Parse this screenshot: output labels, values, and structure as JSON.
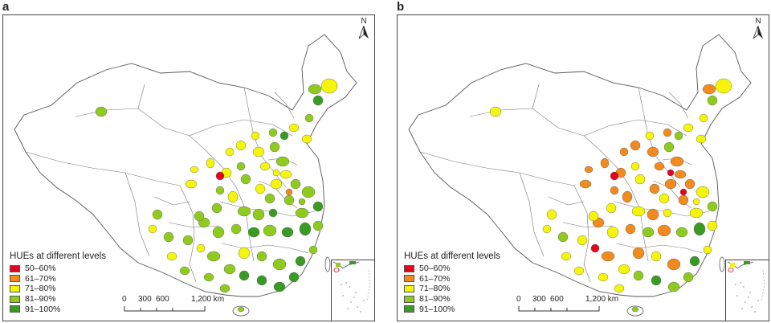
{
  "panels": [
    {
      "label": "a",
      "legend_title": "HUEs at different levels",
      "legend": [
        {
          "label": "50–60%",
          "color": "#e8001c"
        },
        {
          "label": "61–70%",
          "color": "#f28a1e"
        },
        {
          "label": "71–80%",
          "color": "#f5f50a"
        },
        {
          "label": "81–90%",
          "color": "#8fcb1e"
        },
        {
          "label": "91–100%",
          "color": "#3a9b24"
        }
      ],
      "scale_ticks": [
        "0",
        "300",
        "600",
        "1,200 km"
      ],
      "north": "N"
    },
    {
      "label": "b",
      "legend_title": "HUEs at different levels",
      "legend": [
        {
          "label": "50–60%",
          "color": "#e8001c"
        },
        {
          "label": "61–70%",
          "color": "#f28a1e"
        },
        {
          "label": "71–80%",
          "color": "#f5f50a"
        },
        {
          "label": "81–90%",
          "color": "#8fcb1e"
        },
        {
          "label": "91–100%",
          "color": "#3a9b24"
        }
      ],
      "scale_ticks": [
        "0",
        "300",
        "600",
        "1,200 km"
      ],
      "north": "N"
    }
  ],
  "colors": {
    "border": "#555555",
    "land": "#ffffff"
  },
  "icons": [
    "north-arrow-icon"
  ]
}
